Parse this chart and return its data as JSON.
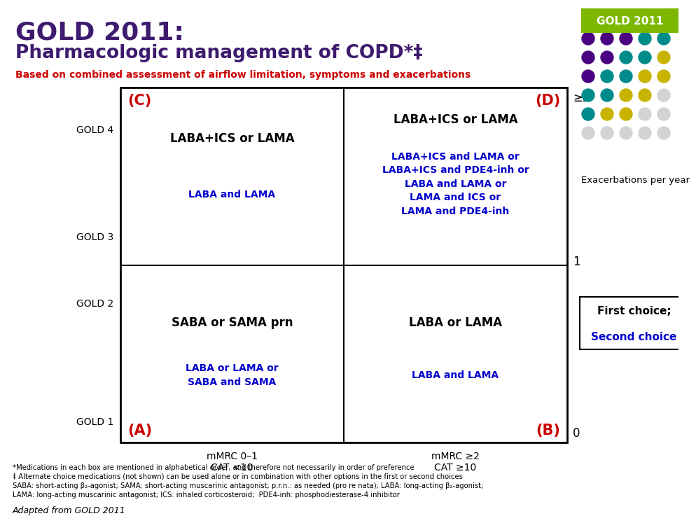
{
  "title_line1": "GOLD 2011:",
  "title_line2": "Pharmacologic management of COPD*‡",
  "subtitle": "Based on combined assessment of airflow limitation, symptoms and exacerbations",
  "title_color": "#3d1a6e",
  "subtitle_color": "#cc0000",
  "gold2011_bg": "#7db800",
  "gold2011_text": "GOLD 2011",
  "corner_color": "#cc0000",
  "box_C_first": "LABA+ICS or LAMA",
  "box_C_second": "LABA and LAMA",
  "box_D_first": "LABA+ICS or LAMA",
  "box_D_second": "LABA+ICS and LAMA or\nLABA+ICS and PDE4-inh or\nLABA and LAMA or\nLAMA and ICS or\nLAMA and PDE4-inh",
  "box_A_first": "SABA or SAMA prn",
  "box_A_second": "LABA or LAMA or\nSABA and SAMA",
  "box_B_first": "LABA or LAMA",
  "box_B_second": "LABA and LAMA",
  "first_choice_color": "#000000",
  "second_choice_color": "#0000cc",
  "exacerbations_label": "Exacerbations per year",
  "tick_ge2": "≥2",
  "tick_1": "1",
  "tick_0": "0",
  "xaxis_left": "mMRC 0–1\nCAT <10",
  "xaxis_right": "mMRC ≥2\nCAT ≥10",
  "legend_first": "First choice;",
  "legend_second": "Second choice",
  "footnote1": "*Medications in each box are mentioned in alphabetical order, and therefore not necessarily in order of preference",
  "footnote2": "‡ Alternate choice medications (not shown) can be used alone or in combination with other options in the first or second choices",
  "footnote3": "SABA: short-acting β₂-agonist; SAMA: short-acting muscarinic antagonist; p.r.n.: as needed (pro re nata); LABA: long-acting β₂-agonist;",
  "footnote4": "LAMA: long-acting muscarinic antagonist; ICS: inhaled corticosteroid;  PDE4-inh: phosphodiesterase-4 inhibitor",
  "adapted": "Adapted from GOLD 2011",
  "dot_grid": [
    [
      "#4b0082",
      "#4b0082",
      "#4b0082",
      "#008b8b",
      "#008b8b"
    ],
    [
      "#4b0082",
      "#4b0082",
      "#008b8b",
      "#008b8b",
      "#c8b400"
    ],
    [
      "#4b0082",
      "#008b8b",
      "#008b8b",
      "#c8b400",
      "#c8b400"
    ],
    [
      "#008b8b",
      "#008b8b",
      "#c8b400",
      "#c8b400",
      "#d3d3d3"
    ],
    [
      "#008b8b",
      "#c8b400",
      "#c8b400",
      "#d3d3d3",
      "#d3d3d3"
    ],
    [
      "#d3d3d3",
      "#d3d3d3",
      "#d3d3d3",
      "#d3d3d3",
      "#d3d3d3"
    ]
  ]
}
